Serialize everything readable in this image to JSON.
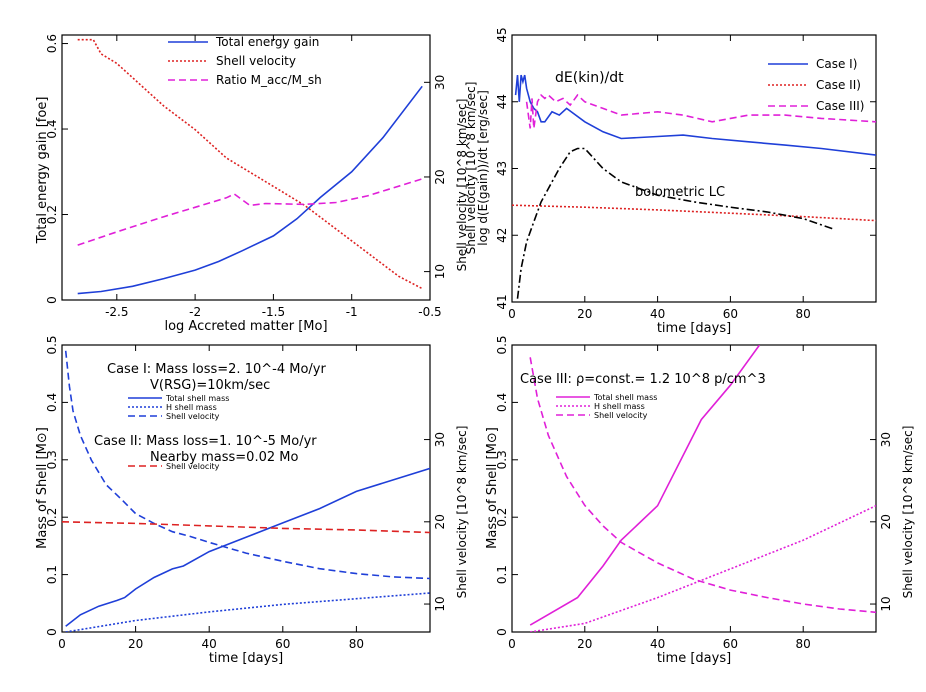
{
  "chart_data": [
    {
      "type": "line",
      "title": "",
      "xlabel": "log  Accreted matter [Mo]",
      "ylabel": "Total energy gain [foe]",
      "y2label": "Shell velocity [10^8 km/sec]",
      "xlim": [
        -2.85,
        -0.5
      ],
      "ylim": [
        0,
        0.62
      ],
      "y2lim": [
        7,
        35
      ],
      "xticks": [
        -2.5,
        -2,
        -1.5,
        -1,
        -0.5
      ],
      "xtick_labels": [
        "-2.5",
        "-2",
        "-1.5",
        "-1",
        "-0.5"
      ],
      "yticks": [
        0,
        0.2,
        0.4,
        0.6
      ],
      "ytick_labels": [
        "0",
        "0.2",
        "0.4",
        "0.6"
      ],
      "y2ticks": [
        10,
        20,
        30
      ],
      "y2tick_labels": [
        "10",
        "20",
        "30"
      ],
      "series": [
        {
          "name": "Total energy gain",
          "axis": "left",
          "color": "#1f3fd8",
          "dash": "",
          "x": [
            -2.75,
            -2.6,
            -2.4,
            -2.2,
            -2.0,
            -1.85,
            -1.7,
            -1.5,
            -1.35,
            -1.2,
            -1.0,
            -0.8,
            -0.55
          ],
          "y": [
            0.015,
            0.02,
            0.032,
            0.05,
            0.07,
            0.09,
            0.115,
            0.15,
            0.19,
            0.24,
            0.3,
            0.38,
            0.5
          ]
        },
        {
          "name": "Shell velocity",
          "axis": "right",
          "color": "#dd2222",
          "dash": "2 2",
          "x": [
            -2.75,
            -2.65,
            -2.6,
            -2.5,
            -2.4,
            -2.3,
            -2.2,
            -2.0,
            -1.8,
            -1.5,
            -1.3,
            -1.1,
            -0.9,
            -0.7,
            -0.55
          ],
          "y": [
            34.5,
            34.5,
            33.0,
            32.0,
            30.5,
            29.0,
            27.5,
            25.0,
            22.0,
            19.0,
            17.0,
            14.5,
            12.0,
            9.5,
            8.2
          ]
        },
        {
          "name": "Ratio M_acc/M_sh",
          "axis": "right",
          "color": "#e020d8",
          "dash": "7 4",
          "x": [
            -2.75,
            -2.5,
            -2.2,
            -2.0,
            -1.8,
            -1.75,
            -1.65,
            -1.55,
            -1.3,
            -1.1,
            -0.9,
            -0.55
          ],
          "y": [
            12.8,
            14.2,
            15.8,
            16.8,
            17.8,
            18.2,
            17.0,
            17.2,
            17.1,
            17.3,
            18.0,
            19.8
          ]
        }
      ],
      "legend": {
        "location": "top-center",
        "entries": [
          "Total energy gain",
          "Shell velocity",
          "Ratio M_acc/M_sh"
        ]
      }
    },
    {
      "type": "line",
      "title": "dE(kin)/dt",
      "xlabel": "time [days]",
      "ylabel": "log d(E(gain))/dt [erg/sec]",
      "xlim": [
        0,
        100
      ],
      "ylim": [
        41,
        45
      ],
      "xticks": [
        0,
        20,
        40,
        60,
        80
      ],
      "xtick_labels": [
        "0",
        "20",
        "40",
        "60",
        "80"
      ],
      "yticks": [
        41,
        42,
        43,
        44,
        45
      ],
      "ytick_labels": [
        "41",
        "42",
        "43",
        "44",
        "45"
      ],
      "annotations": [
        "bolometric LC"
      ],
      "series": [
        {
          "name": "Case I)",
          "color": "#1f3fd8",
          "dash": "",
          "x": [
            1,
            1.5,
            2,
            2.5,
            3,
            3.5,
            4,
            5,
            6,
            7,
            8,
            9,
            11,
            13,
            15,
            20,
            25,
            30,
            40,
            47,
            55,
            65,
            75,
            85,
            100
          ],
          "y": [
            44.1,
            44.4,
            44.0,
            44.4,
            44.3,
            44.4,
            44.2,
            44.0,
            43.9,
            43.85,
            43.7,
            43.7,
            43.85,
            43.8,
            43.9,
            43.7,
            43.55,
            43.45,
            43.48,
            43.5,
            43.45,
            43.4,
            43.35,
            43.3,
            43.2
          ]
        },
        {
          "name": "Case II)",
          "color": "#dd2222",
          "dash": "2 2",
          "x": [
            0,
            20,
            40,
            60,
            80,
            100
          ],
          "y": [
            42.45,
            42.42,
            42.38,
            42.33,
            42.28,
            42.22
          ]
        },
        {
          "name": "Case III)",
          "color": "#e020d8",
          "dash": "7 4",
          "x": [
            4,
            5,
            5.5,
            6,
            7,
            8,
            9,
            10,
            12,
            14,
            16,
            18,
            20,
            25,
            30,
            40,
            47,
            55,
            65,
            75,
            85,
            100
          ],
          "y": [
            44.0,
            43.6,
            44.05,
            43.6,
            44.0,
            44.1,
            44.05,
            44.1,
            44.0,
            44.05,
            43.95,
            44.1,
            44.0,
            43.9,
            43.8,
            43.85,
            43.8,
            43.7,
            43.8,
            43.8,
            43.75,
            43.7
          ]
        },
        {
          "name": "bolometric LC",
          "color": "#000000",
          "dash": "8 3 2 3",
          "x": [
            1.5,
            2.5,
            4,
            6,
            8,
            10,
            13,
            16,
            18,
            20,
            25,
            30,
            40,
            50,
            60,
            70,
            80,
            88
          ],
          "y": [
            41.05,
            41.5,
            41.9,
            42.2,
            42.5,
            42.7,
            43.0,
            43.25,
            43.3,
            43.3,
            43.0,
            42.8,
            42.6,
            42.5,
            42.42,
            42.35,
            42.25,
            42.1
          ]
        }
      ],
      "legend": {
        "location": "top-right",
        "entries": [
          "Case I)",
          "Case II)",
          "Case III)"
        ]
      }
    },
    {
      "type": "line",
      "title": "",
      "xlabel": "time [days]",
      "ylabel": "Mass of Shell [M⊙]",
      "y2label": "Shell velocity [10^8 km/sec]",
      "xlim": [
        0,
        100
      ],
      "ylim": [
        0,
        0.5
      ],
      "y2lim": [
        6.6,
        41.5
      ],
      "xticks": [
        0,
        20,
        40,
        60,
        80
      ],
      "xtick_labels": [
        "0",
        "20",
        "40",
        "60",
        "80"
      ],
      "yticks": [
        0,
        0.1,
        0.2,
        0.3,
        0.4,
        0.5
      ],
      "ytick_labels": [
        "0",
        "0.1",
        "0.2",
        "0.3",
        "0.4",
        "0.5"
      ],
      "y2ticks": [
        10,
        20,
        30
      ],
      "y2tick_labels": [
        "10",
        "20",
        "30"
      ],
      "annotations": [
        "Case I: Mass loss=2. 10^-4 Mo/yr",
        "V(RSG)=10km/sec",
        "Case II: Mass loss=1. 10^-5 Mo/yr",
        "Nearby mass=0.02 Mo"
      ],
      "series": [
        {
          "name": "Total shell mass",
          "axis": "left",
          "color": "#1f3fd8",
          "dash": "",
          "x": [
            1,
            5,
            10,
            15,
            17,
            20,
            25,
            30,
            33,
            40,
            50,
            60,
            70,
            80,
            90,
            100
          ],
          "y": [
            0.01,
            0.03,
            0.045,
            0.055,
            0.06,
            0.075,
            0.095,
            0.11,
            0.115,
            0.14,
            0.165,
            0.19,
            0.215,
            0.245,
            0.265,
            0.285
          ]
        },
        {
          "name": "H shell mass",
          "axis": "left",
          "color": "#1f3fd8",
          "dash": "2 2",
          "x": [
            1,
            20,
            40,
            60,
            80,
            100
          ],
          "y": [
            0.0,
            0.02,
            0.035,
            0.048,
            0.058,
            0.068
          ]
        },
        {
          "name": "Shell velocity (Case I)",
          "axis": "right",
          "color": "#1f3fd8",
          "dash": "7 4",
          "x": [
            1,
            2,
            3,
            5,
            8,
            12,
            16,
            20,
            25,
            30,
            35,
            40,
            50,
            60,
            70,
            80,
            90,
            100
          ],
          "y": [
            40.8,
            36.5,
            33.5,
            30.5,
            27.5,
            24.5,
            22.8,
            21.0,
            19.8,
            18.8,
            18.2,
            17.5,
            16.2,
            15.2,
            14.3,
            13.7,
            13.3,
            13.1
          ]
        },
        {
          "name": "Shell velocity (Case II)",
          "axis": "right",
          "color": "#dd2222",
          "dash": "7 4",
          "x": [
            0,
            20,
            40,
            60,
            80,
            100
          ],
          "y": [
            20.0,
            19.8,
            19.5,
            19.2,
            19.0,
            18.7
          ]
        }
      ],
      "legend": {
        "location": "top-left",
        "entries": [
          "Total shell mass",
          "H shell mass",
          "Shell velocity",
          "Shell velocity"
        ]
      }
    },
    {
      "type": "line",
      "title": "",
      "xlabel": "time [days]",
      "ylabel": "Mass of Shell [M⊙]",
      "y2label": "Shell velocity [10^8 km/sec]",
      "xlim": [
        0,
        100
      ],
      "ylim": [
        0,
        0.5
      ],
      "y2lim": [
        6.6,
        41.5
      ],
      "xticks": [
        0,
        20,
        40,
        60,
        80
      ],
      "xtick_labels": [
        "0",
        "20",
        "40",
        "60",
        "80"
      ],
      "yticks": [
        0,
        0.1,
        0.2,
        0.3,
        0.4,
        0.5
      ],
      "ytick_labels": [
        "0",
        "0.1",
        "0.2",
        "0.3",
        "0.4",
        "0.5"
      ],
      "y2ticks": [
        10,
        20,
        30
      ],
      "y2tick_labels": [
        "10",
        "20",
        "30"
      ],
      "annotations": [
        "Case III: ρ=const.= 1.2 10^8 p/cm^3"
      ],
      "series": [
        {
          "name": "Total shell mass",
          "axis": "left",
          "color": "#e020d8",
          "dash": "",
          "x": [
            5,
            18,
            25,
            30,
            40,
            52,
            60,
            68
          ],
          "y": [
            0.012,
            0.06,
            0.115,
            0.16,
            0.22,
            0.37,
            0.43,
            0.5
          ]
        },
        {
          "name": "H shell mass",
          "axis": "left",
          "color": "#e020d8",
          "dash": "2 2",
          "x": [
            5,
            20,
            40,
            60,
            80,
            100
          ],
          "y": [
            0.0,
            0.015,
            0.06,
            0.11,
            0.16,
            0.22
          ]
        },
        {
          "name": "Shell velocity",
          "axis": "right",
          "color": "#e020d8",
          "dash": "7 4",
          "x": [
            5,
            7,
            10,
            15,
            20,
            25,
            30,
            40,
            50,
            60,
            70,
            80,
            90,
            100
          ],
          "y": [
            40.0,
            35.0,
            30.5,
            25.5,
            22.0,
            19.5,
            17.5,
            15.0,
            13.0,
            11.7,
            10.8,
            10.0,
            9.4,
            9.0
          ]
        }
      ],
      "legend": {
        "location": "top-left",
        "entries": [
          "Total shell mass",
          "H shell mass",
          "Shell velocity"
        ]
      }
    }
  ]
}
